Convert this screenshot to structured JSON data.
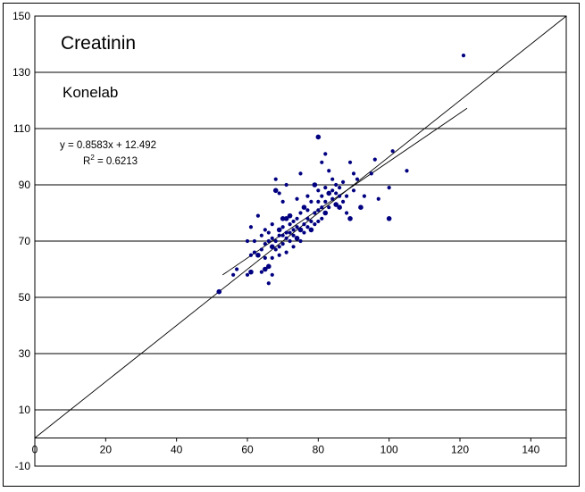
{
  "chart_data": {
    "type": "scatter",
    "title": "Creatinin",
    "subtitle": "Konelab",
    "equation": "y = 0.8583x + 12.492",
    "r2_prefix": "R",
    "r2_sup": "2",
    "r2_value": " = 0.6213",
    "xlim": [
      0,
      150
    ],
    "ylim": [
      -10,
      150
    ],
    "x_ticks": [
      "0",
      "20",
      "40",
      "60",
      "80",
      "100",
      "120",
      "140"
    ],
    "y_ticks": [
      "-10",
      "10",
      "30",
      "50",
      "70",
      "90",
      "110",
      "130",
      "150"
    ],
    "grid": "horizontal",
    "identity_line": {
      "x": [
        0,
        150
      ],
      "y": [
        0,
        150
      ]
    },
    "regression_line": {
      "slope": 0.8583,
      "intercept": 12.492,
      "x": [
        53,
        122
      ]
    },
    "colors": {
      "points": "#000080",
      "lines": "#000000",
      "grid": "#000000"
    },
    "series": [
      {
        "x": [
          52,
          56,
          57,
          60,
          60,
          61,
          61,
          61,
          62,
          62,
          63,
          63,
          64,
          64,
          64,
          65,
          65,
          65,
          65,
          66,
          66,
          66,
          66,
          67,
          67,
          67,
          67,
          67,
          68,
          68,
          68,
          68,
          69,
          69,
          69,
          69,
          69,
          70,
          70,
          70,
          70,
          70,
          71,
          71,
          71,
          71,
          71,
          72,
          72,
          72,
          72,
          73,
          73,
          73,
          73,
          74,
          74,
          74,
          74,
          75,
          75,
          75,
          75,
          76,
          76,
          76,
          77,
          77,
          77,
          77,
          78,
          78,
          78,
          79,
          79,
          79,
          80,
          80,
          80,
          80,
          80,
          81,
          81,
          81,
          81,
          82,
          82,
          82,
          82,
          83,
          83,
          83,
          84,
          84,
          84,
          85,
          85,
          85,
          86,
          86,
          86,
          87,
          87,
          88,
          88,
          89,
          89,
          90,
          90,
          91,
          92,
          93,
          95,
          96,
          97,
          100,
          100,
          101,
          105,
          121
        ],
        "y": [
          52,
          58,
          60,
          58,
          70,
          59,
          65,
          75,
          66,
          70,
          65,
          79,
          59,
          67,
          72,
          60,
          64,
          69,
          74,
          55,
          61,
          70,
          73,
          58,
          64,
          68,
          71,
          76,
          67,
          70,
          88,
          92,
          65,
          68,
          72,
          74,
          87,
          69,
          72,
          75,
          78,
          84,
          66,
          71,
          73,
          78,
          90,
          70,
          73,
          76,
          79,
          68,
          72,
          74,
          77,
          71,
          75,
          78,
          85,
          70,
          74,
          80,
          94,
          73,
          76,
          82,
          75,
          78,
          81,
          86,
          74,
          77,
          84,
          76,
          80,
          90,
          77,
          81,
          84,
          88,
          107,
          78,
          82,
          86,
          98,
          80,
          84,
          89,
          101,
          82,
          87,
          95,
          85,
          88,
          92,
          83,
          87,
          90,
          86,
          89,
          82,
          84,
          91,
          86,
          80,
          78,
          98,
          88,
          94,
          92,
          82,
          86,
          94,
          99,
          85,
          78,
          89,
          102,
          95,
          136
        ]
      }
    ]
  }
}
